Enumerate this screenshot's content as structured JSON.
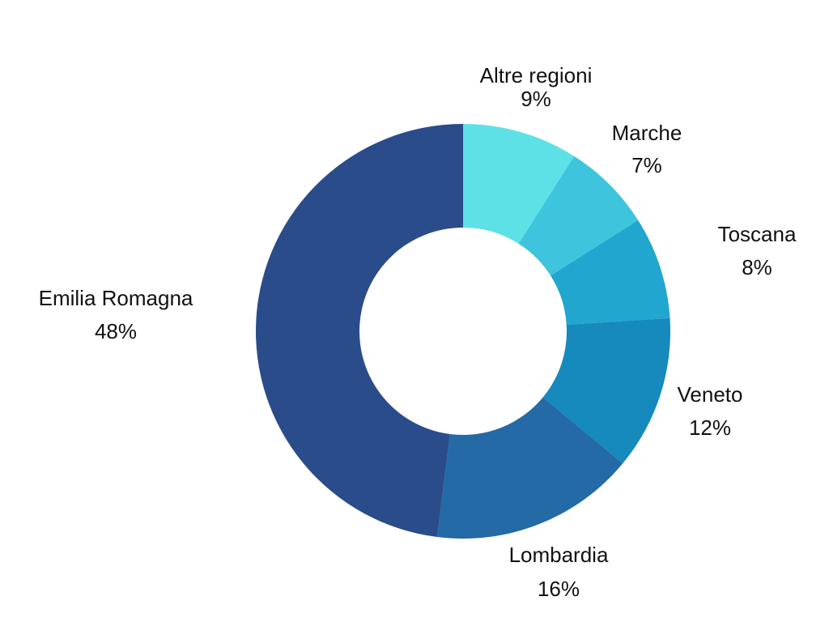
{
  "chart_data": {
    "type": "pie",
    "donut": true,
    "title": "",
    "legend": "none",
    "slices": [
      {
        "label": "Altre regioni",
        "value": 9,
        "value_label": "9%",
        "color": "#5ee1e6"
      },
      {
        "label": "Marche",
        "value": 7,
        "value_label": "7%",
        "color": "#3ec4dc"
      },
      {
        "label": "Toscana",
        "value": 8,
        "value_label": "8%",
        "color": "#21a6cf"
      },
      {
        "label": "Veneto",
        "value": 12,
        "value_label": "12%",
        "color": "#1689bd"
      },
      {
        "label": "Lombardia",
        "value": 16,
        "value_label": "16%",
        "color": "#236aa6"
      },
      {
        "label": "Emilia Romagna",
        "value": 48,
        "value_label": "48%",
        "color": "#2b4c8a"
      }
    ]
  }
}
